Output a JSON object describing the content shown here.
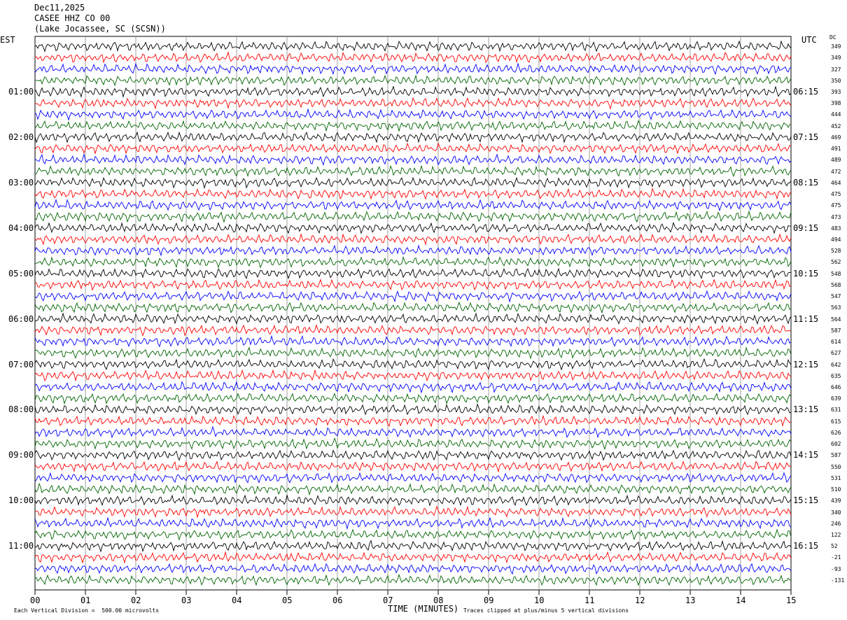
{
  "header": {
    "date": "Dec11,2025",
    "station": "CASEE HHZ CO 00",
    "location": "(Lake Jocassee, SC (SCSN))"
  },
  "left_axis_title": "EST",
  "right_axis_title": "UTC",
  "dc_label": "DC",
  "footer": {
    "xlabel": "TIME (MINUTES)",
    "scale_note": "Each Vertical Division =  500.00 microvolts",
    "clip_note": "Traces clipped at plus/minus 5 vertical divisions"
  },
  "colors": {
    "cycle": [
      "#000000",
      "#ff0000",
      "#0000ff",
      "#006400"
    ],
    "grid": "#888888"
  },
  "chart_data": {
    "type": "line",
    "title": "",
    "xlabel": "TIME (MINUTES)",
    "xlim": [
      0,
      15
    ],
    "x_ticks": [
      "00",
      "01",
      "02",
      "03",
      "04",
      "05",
      "06",
      "07",
      "08",
      "09",
      "10",
      "11",
      "12",
      "13",
      "14",
      "15"
    ],
    "est_hour_labels": [
      "01:00",
      "02:00",
      "03:00",
      "04:00",
      "05:00",
      "06:00",
      "07:00",
      "08:00",
      "09:00",
      "10:00",
      "11:00"
    ],
    "utc_hour_labels": [
      "06:15",
      "07:15",
      "08:15",
      "09:15",
      "10:15",
      "11:15",
      "12:15",
      "13:15",
      "14:15",
      "15:15",
      "16:15"
    ],
    "trace_count": 48,
    "traces_per_hour": 4,
    "dc_offsets": [
      349,
      349,
      327,
      350,
      393,
      398,
      444,
      452,
      469,
      491,
      489,
      472,
      464,
      475,
      475,
      473,
      483,
      494,
      528,
      562,
      548,
      568,
      547,
      563,
      564,
      587,
      614,
      627,
      642,
      635,
      646,
      639,
      631,
      615,
      626,
      602,
      587,
      550,
      531,
      510,
      439,
      340,
      246,
      122,
      52,
      -21,
      -93,
      -131
    ]
  }
}
